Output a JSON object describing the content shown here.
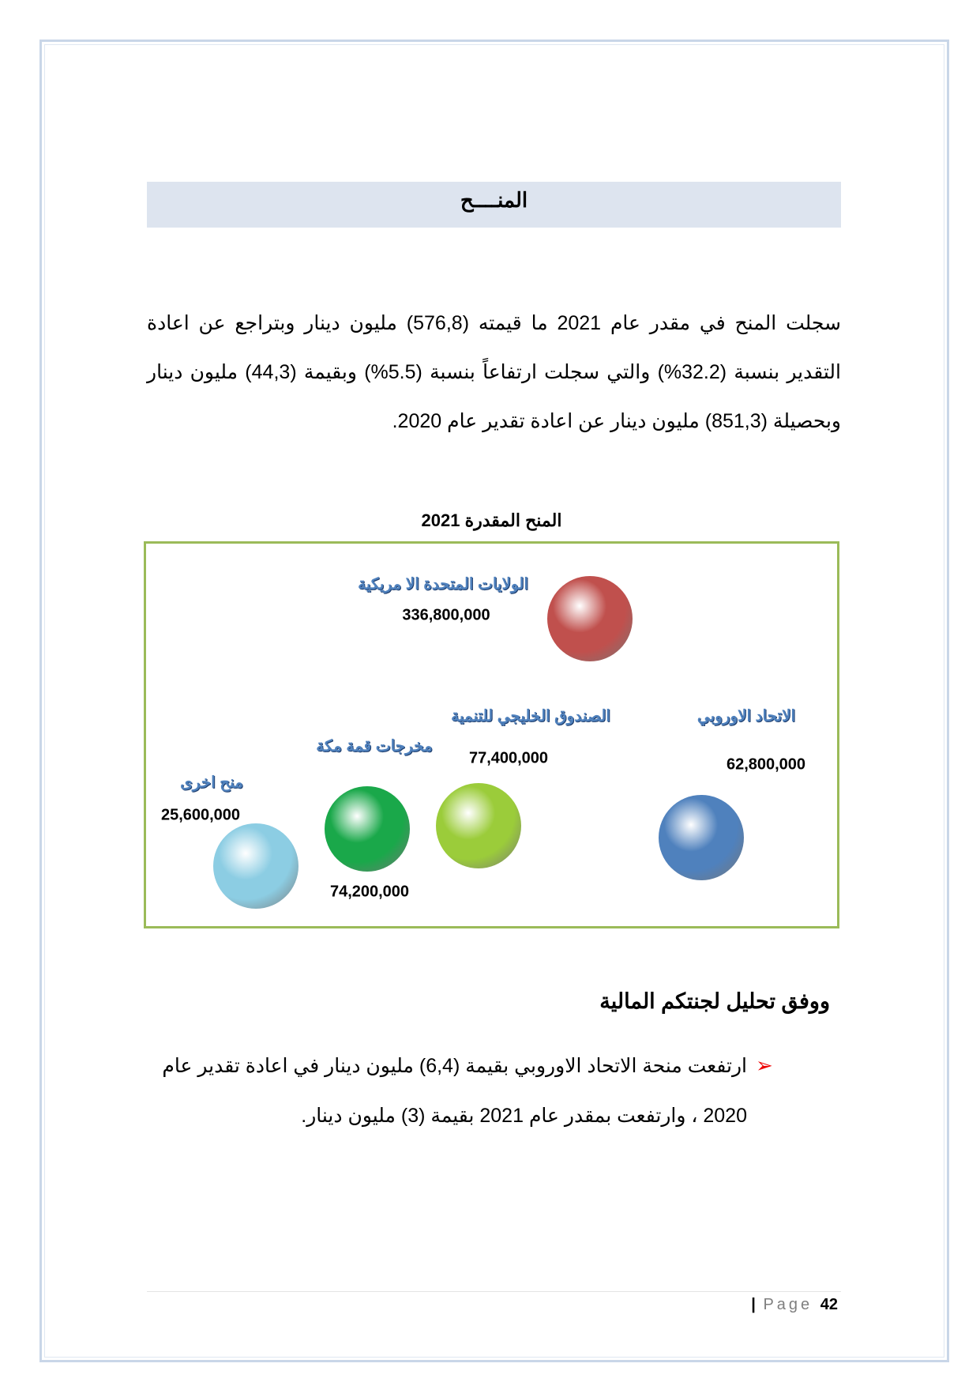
{
  "header": {
    "title": "المنــــح"
  },
  "paragraph": "سجلت المنح في مقدر عام 2021 ما قيمته (576,8) مليون دينار وبتراجع عن اعادة التقدير بنسبة (32.2%) والتي سجلت ارتفاعاً بنسبة (5.5%)  وبقيمة (44,3) مليون دينار وبحصيلة (851,3) مليون دينار عن اعادة تقدير عام 2020.",
  "chart_data": {
    "type": "scatter",
    "title": "المنح المقدرة 2021",
    "categories": [
      "الولايات المتحدة الا مريكية",
      "الاتحاد الاوروبي",
      "الصندوق الخليجي للتنمية",
      "مخرجات قمة مكة",
      "منح اخرى"
    ],
    "values": [
      "336,800,000",
      "62,800,000",
      "77,400,000",
      "74,200,000",
      "25,600,000"
    ],
    "colors": [
      "#c0504d",
      "#4f81bd",
      "#9bcc3a",
      "#1aa84a",
      "#8ccde3"
    ],
    "border_color": "#9bbb59"
  },
  "subheading": "ووفق تحليل لجنتكم المالية",
  "bullet": {
    "icon": "arrow-bullet-icon",
    "text": "ارتفعت منحة الاتحاد الاوروبي بقيمة (6,4) مليون دينار في اعادة تقدير عام 2020 ، وارتفعت بمقدر عام 2021 بقيمة (3) مليون دينار."
  },
  "footer": {
    "separator": "|",
    "page_word": "Page",
    "page_number": "42"
  }
}
